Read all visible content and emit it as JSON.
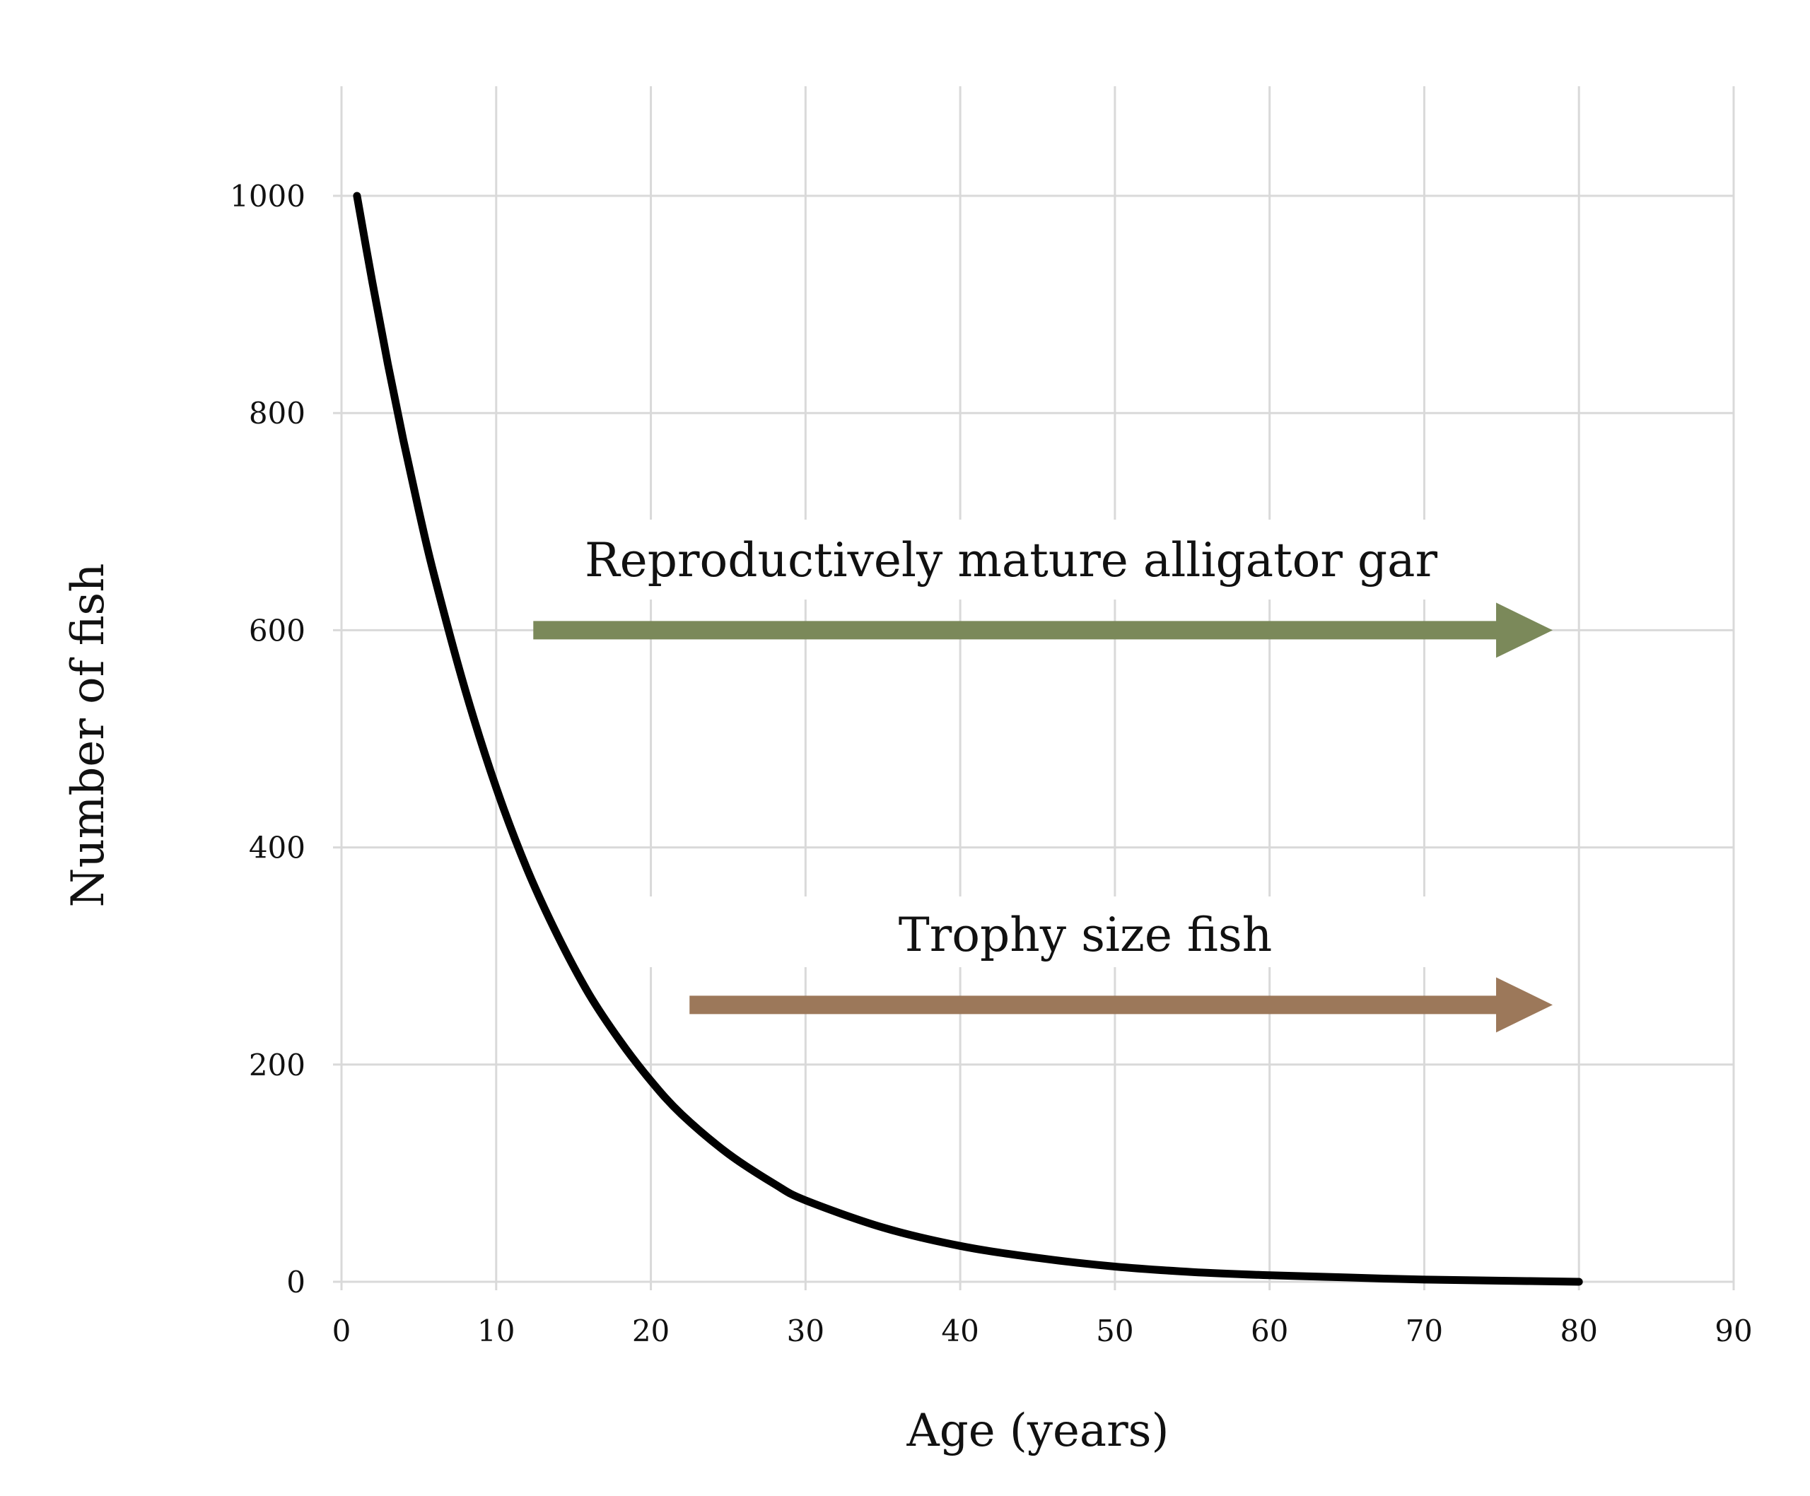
{
  "chart_data": {
    "type": "line",
    "title": "",
    "xlabel": "Age (years)",
    "ylabel": "Number of fish",
    "xlim": [
      0,
      90
    ],
    "ylim": [
      0,
      1000
    ],
    "xticks": [
      0,
      10,
      20,
      30,
      40,
      50,
      60,
      70,
      80,
      90
    ],
    "yticks": [
      0,
      200,
      400,
      600,
      800,
      1000
    ],
    "x_tick_labels": [
      "0",
      "10",
      "20",
      "30",
      "40",
      "50",
      "60",
      "70",
      "80",
      "90"
    ],
    "y_tick_labels": [
      "0",
      "200",
      "400",
      "600",
      "800",
      "1000"
    ],
    "grid": true,
    "legend": "none",
    "series": [
      {
        "color": "#000000",
        "x": [
          1,
          2,
          3,
          4,
          5,
          6,
          8,
          10,
          12,
          14,
          16,
          18,
          20,
          22,
          25,
          28,
          30,
          35,
          40,
          45,
          50,
          55,
          60,
          65,
          70,
          75,
          80
        ],
        "y": [
          1000,
          920,
          845,
          775,
          710,
          650,
          545,
          455,
          380,
          318,
          265,
          222,
          185,
          154,
          118,
          90,
          75,
          50,
          33,
          22,
          14,
          9,
          6,
          4,
          2,
          1,
          0
        ]
      }
    ],
    "annotations": [
      {
        "text": "Reproductively mature alligator gar",
        "arrow_from_x": 12.4,
        "arrow_to_x": 78.3,
        "arrow_y": 600,
        "color": "#7b895a"
      },
      {
        "text": "Trophy size fish",
        "arrow_from_x": 22.5,
        "arrow_to_x": 78.3,
        "arrow_y": 255,
        "color": "#9c785a"
      }
    ]
  }
}
